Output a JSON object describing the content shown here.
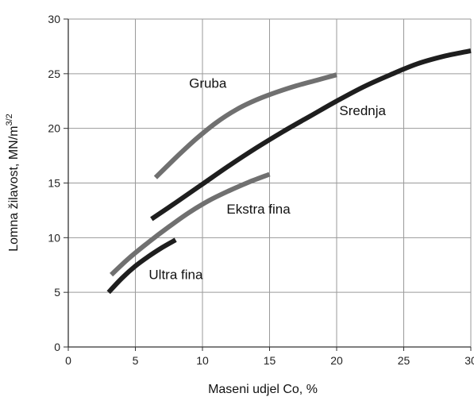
{
  "chart_data": {
    "type": "line",
    "title": "",
    "xlabel": "Maseni udjel Co, %",
    "ylabel_main": "Lomna žilavost, MN/m",
    "ylabel_sup": "3/2",
    "xlim": [
      0,
      30
    ],
    "ylim": [
      0,
      30
    ],
    "xticks": [
      "0",
      "5",
      "10",
      "15",
      "20",
      "25",
      "30"
    ],
    "yticks": [
      "0",
      "5",
      "10",
      "15",
      "20",
      "25",
      "30"
    ],
    "grid": true,
    "series": [
      {
        "name": "Gruba",
        "color": "#707070",
        "x": [
          6.5,
          8.0,
          9.5,
          11.0,
          12.5,
          14.0,
          15.5,
          17.0,
          18.5,
          20.0
        ],
        "y": [
          15.5,
          17.3,
          19.0,
          20.5,
          21.7,
          22.6,
          23.3,
          23.9,
          24.4,
          24.9
        ]
      },
      {
        "name": "Srednja",
        "color": "#1e1e1e",
        "x": [
          6.2,
          8.0,
          10.0,
          12.0,
          14.0,
          16.0,
          18.0,
          20.0,
          22.0,
          24.0,
          26.0,
          28.0,
          30.0
        ],
        "y": [
          11.7,
          13.2,
          14.9,
          16.6,
          18.2,
          19.7,
          21.1,
          22.5,
          23.8,
          24.9,
          25.9,
          26.6,
          27.1
        ]
      },
      {
        "name": "Ekstra fina",
        "color": "#707070",
        "x": [
          3.2,
          4.5,
          6.0,
          7.5,
          9.0,
          10.5,
          12.0,
          13.5,
          15.0
        ],
        "y": [
          6.6,
          8.1,
          9.6,
          11.0,
          12.3,
          13.4,
          14.3,
          15.1,
          15.8
        ]
      },
      {
        "name": "Ultra fina",
        "color": "#1e1e1e",
        "x": [
          3.0,
          4.0,
          5.0,
          6.0,
          7.0,
          8.0
        ],
        "y": [
          5.0,
          6.3,
          7.4,
          8.3,
          9.1,
          9.8
        ]
      }
    ],
    "annotations": [
      {
        "text": "Gruba",
        "x": 9.0,
        "y": 23.7
      },
      {
        "text": "Srednja",
        "x": 20.2,
        "y": 21.2
      },
      {
        "text": "Ekstra fina",
        "x": 11.8,
        "y": 12.2
      },
      {
        "text": "Ultra fina",
        "x": 6.0,
        "y": 6.2
      }
    ]
  }
}
